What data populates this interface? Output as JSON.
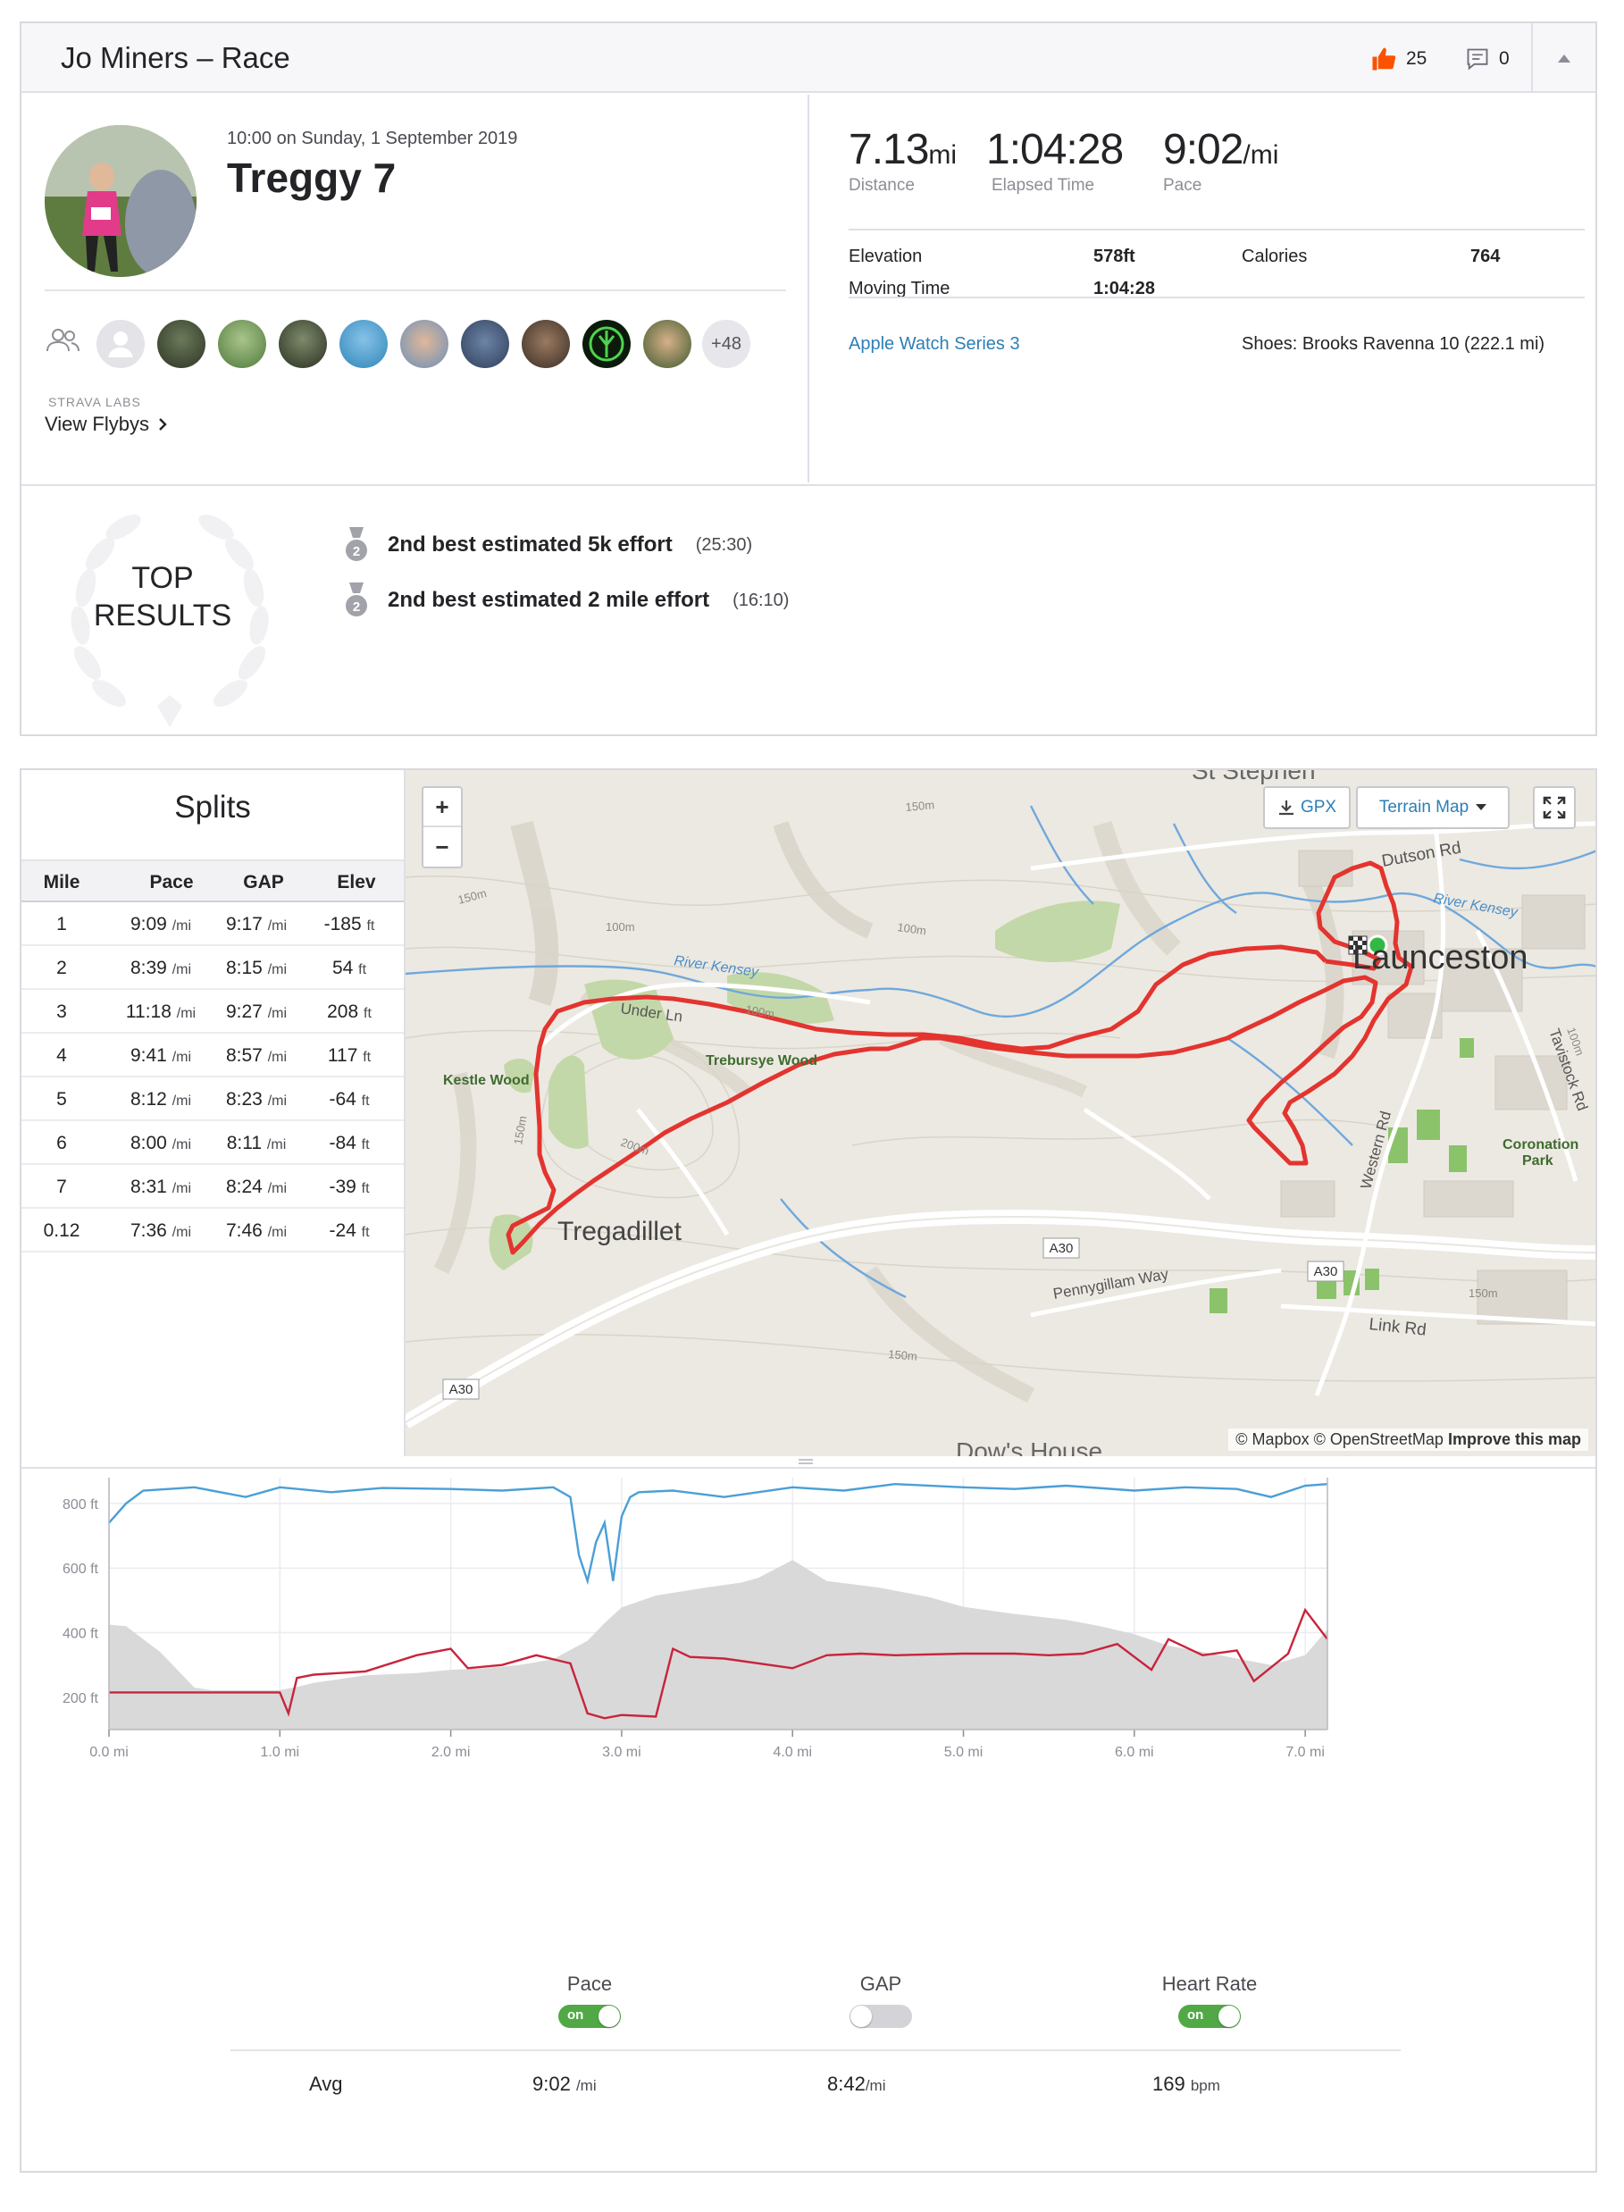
{
  "header": {
    "title": "Jo Miners – Race",
    "kudos_count": "25",
    "comment_count": "0"
  },
  "activity": {
    "date": "10:00 on Sunday, 1 September 2019",
    "name": "Treggy 7",
    "more_athletes": "+48",
    "labs_label": "STRAVA LABS",
    "flybys_label": "View Flybys"
  },
  "stats": {
    "distance": {
      "value": "7.13",
      "unit": "mi",
      "label": "Distance"
    },
    "elapsed": {
      "value": "1:04:28",
      "label": "Elapsed Time"
    },
    "pace": {
      "value": "9:02",
      "unit": "/mi",
      "label": "Pace"
    },
    "elevation_label": "Elevation",
    "elevation_value": "578ft",
    "calories_label": "Calories",
    "calories_value": "764",
    "moving_label": "Moving Time",
    "moving_value": "1:04:28",
    "device": "Apple Watch Series 3",
    "shoes": "Shoes: Brooks Ravenna 10 (222.1 mi)"
  },
  "results": {
    "label_line1": "TOP",
    "label_line2": "RESULTS",
    "items": [
      {
        "rank": "2",
        "text": "2nd best estimated 5k effort",
        "time": "(25:30)"
      },
      {
        "rank": "2",
        "text": "2nd best estimated 2 mile effort",
        "time": "(16:10)"
      }
    ]
  },
  "splits": {
    "title": "Splits",
    "headers": [
      "Mile",
      "Pace",
      "GAP",
      "Elev"
    ],
    "pace_unit": "/mi",
    "elev_unit": "ft",
    "rows": [
      {
        "mile": "1",
        "pace": "9:09",
        "gap": "9:17",
        "elev": "-185"
      },
      {
        "mile": "2",
        "pace": "8:39",
        "gap": "8:15",
        "elev": "54"
      },
      {
        "mile": "3",
        "pace": "11:18",
        "gap": "9:27",
        "elev": "208"
      },
      {
        "mile": "4",
        "pace": "9:41",
        "gap": "8:57",
        "elev": "117"
      },
      {
        "mile": "5",
        "pace": "8:12",
        "gap": "8:23",
        "elev": "-64"
      },
      {
        "mile": "6",
        "pace": "8:00",
        "gap": "8:11",
        "elev": "-84"
      },
      {
        "mile": "7",
        "pace": "8:31",
        "gap": "8:24",
        "elev": "-39"
      },
      {
        "mile": "0.12",
        "pace": "7:36",
        "gap": "7:46",
        "elev": "-24"
      }
    ]
  },
  "map": {
    "gpx_label": "GPX",
    "terrain_label": "Terrain Map",
    "zoom_in": "+",
    "zoom_out": "−",
    "attribution_1": "© Mapbox © OpenStreetMap",
    "attribution_2": "Improve this map",
    "labels": {
      "launceston": "Launceston",
      "tregadillet": "Tregadillet",
      "st_stephen": "St Stephen",
      "trebursye": "Trebursye Wood",
      "kestle": "Kestle Wood",
      "coronation1": "Coronation",
      "coronation2": "Park",
      "dutson": "Dutson Rd",
      "kensey1": "River Kensey",
      "kensey2": "River Kensey",
      "under": "Under Ln",
      "pennygillam": "Pennygillam Way",
      "link": "Link Rd",
      "western": "Western Rd",
      "tavistock": "Tavistock Rd",
      "a30_1": "A30",
      "a30_2": "A30",
      "a30_3": "A30",
      "dows": "Dow's House",
      "c150a": "150m",
      "c150b": "150m",
      "c150c": "150m",
      "c150d": "150m",
      "c150e": "150m",
      "c100a": "100m",
      "c100b": "100m",
      "c100c": "100m",
      "c100d": "100m",
      "c200": "200m"
    }
  },
  "chart_data": {
    "type": "area",
    "x_unit": "mi",
    "xlim": [
      0,
      7.13
    ],
    "x_ticks": [
      "0.0 mi",
      "1.0 mi",
      "2.0 mi",
      "3.0 mi",
      "4.0 mi",
      "5.0 mi",
      "6.0 mi",
      "7.0 mi"
    ],
    "y_ticks": [
      "800 ft",
      "600 ft",
      "400 ft",
      "200 ft"
    ],
    "ylim": [
      100,
      880
    ],
    "colors": {
      "elevation": "#d9d9d9",
      "pace": "#4a9fd6",
      "heart_rate": "#c8243c"
    },
    "elevation": {
      "x": [
        0,
        0.1,
        0.3,
        0.5,
        0.6,
        0.8,
        1.0,
        1.1,
        1.2,
        1.5,
        1.8,
        2.0,
        2.2,
        2.4,
        2.6,
        2.8,
        2.9,
        3.0,
        3.2,
        3.5,
        3.7,
        3.8,
        4.0,
        4.2,
        4.5,
        4.8,
        5.0,
        5.3,
        5.6,
        5.8,
        6.0,
        6.2,
        6.5,
        6.8,
        7.0,
        7.13
      ],
      "y": [
        425,
        420,
        340,
        230,
        222,
        222,
        222,
        232,
        245,
        268,
        275,
        285,
        290,
        300,
        318,
        375,
        430,
        478,
        515,
        540,
        555,
        570,
        625,
        560,
        540,
        510,
        480,
        458,
        440,
        420,
        395,
        360,
        330,
        300,
        330,
        410
      ]
    },
    "pace": {
      "x": [
        0,
        0.1,
        0.2,
        0.5,
        0.8,
        1.0,
        1.3,
        1.6,
        2.0,
        2.3,
        2.6,
        2.7,
        2.75,
        2.8,
        2.85,
        2.9,
        2.95,
        3.0,
        3.05,
        3.1,
        3.3,
        3.6,
        4.0,
        4.3,
        4.6,
        5.0,
        5.3,
        5.6,
        6.0,
        6.3,
        6.6,
        6.8,
        7.0,
        7.13
      ],
      "y": [
        740,
        800,
        840,
        850,
        820,
        850,
        835,
        848,
        845,
        840,
        850,
        820,
        640,
        560,
        680,
        740,
        560,
        760,
        820,
        835,
        840,
        820,
        850,
        840,
        860,
        850,
        845,
        855,
        840,
        850,
        845,
        820,
        855,
        860
      ]
    },
    "heart_rate": {
      "x": [
        0,
        0.5,
        1.0,
        1.05,
        1.1,
        1.2,
        1.5,
        1.8,
        2.0,
        2.1,
        2.3,
        2.5,
        2.7,
        2.8,
        2.9,
        3.0,
        3.2,
        3.3,
        3.4,
        3.6,
        4.0,
        4.2,
        4.4,
        4.6,
        5.0,
        5.3,
        5.5,
        5.7,
        5.9,
        6.1,
        6.2,
        6.4,
        6.6,
        6.7,
        6.9,
        7.0,
        7.13
      ],
      "y": [
        215,
        215,
        215,
        150,
        260,
        270,
        280,
        330,
        350,
        290,
        300,
        330,
        305,
        150,
        135,
        145,
        140,
        350,
        325,
        320,
        290,
        330,
        335,
        330,
        335,
        335,
        330,
        335,
        365,
        285,
        380,
        330,
        345,
        250,
        335,
        470,
        380
      ]
    }
  },
  "controls": {
    "pace_label": "Pace",
    "gap_label": "GAP",
    "hr_label": "Heart Rate",
    "on_text": "on",
    "avg_label": "Avg",
    "avg_pace": "9:02",
    "avg_pace_unit": "/mi",
    "avg_gap": "8:42",
    "avg_gap_unit": "/mi",
    "avg_hr": "169",
    "avg_hr_unit": "bpm"
  }
}
